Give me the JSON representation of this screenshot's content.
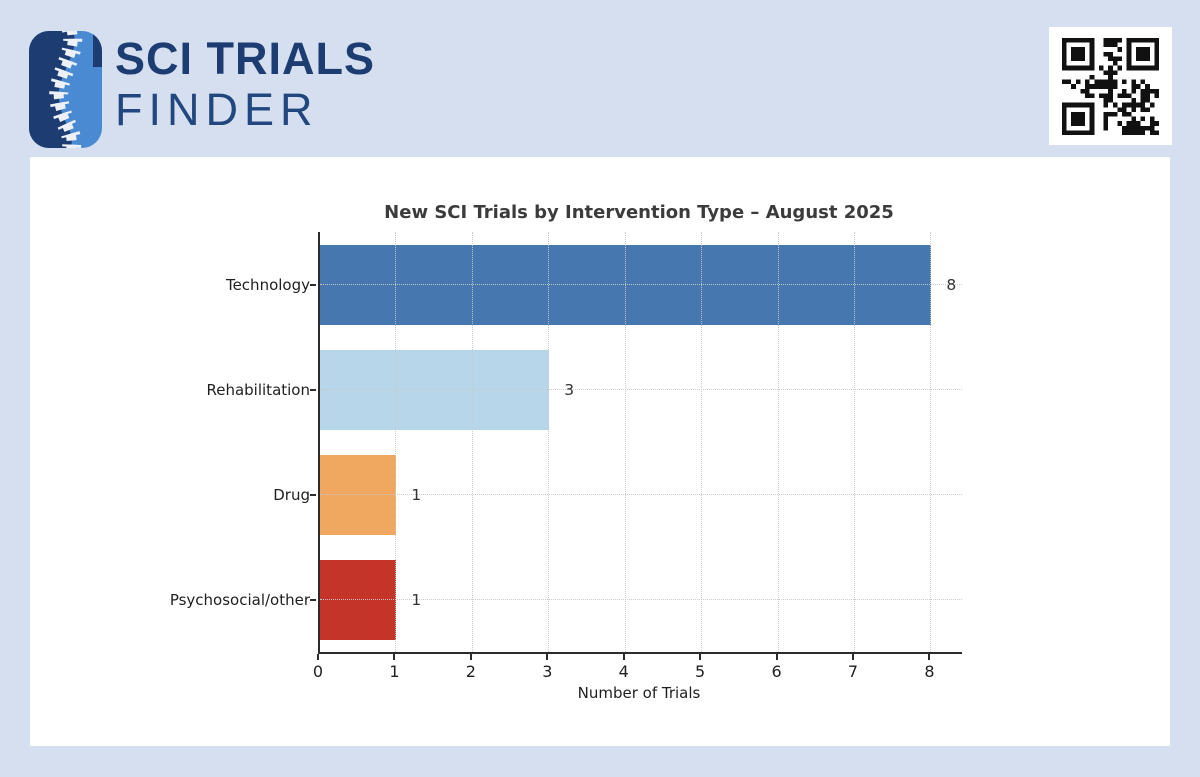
{
  "header": {
    "brand_line1": "SCI TRIALS",
    "brand_line2": "FINDER",
    "logo_icon": "spine-logo-icon",
    "qr_icon": "qr-code"
  },
  "colors": {
    "page_background": "#d5dff0",
    "card_background": "#ffffff",
    "brand_navy": "#1d3d72",
    "brand_blue": "#4a8ad2",
    "spine_white": "#edf1f7"
  },
  "chart_data": {
    "type": "bar",
    "orientation": "horizontal",
    "title": "New SCI Trials by Intervention Type – August 2025",
    "categories": [
      "Technology",
      "Rehabilitation",
      "Drug",
      "Psychosocial/other"
    ],
    "values": [
      8,
      3,
      1,
      1
    ],
    "value_labels": [
      "8",
      "3",
      "1",
      "1"
    ],
    "bar_colors": [
      "#4678af",
      "#b8d6e9",
      "#f0a860",
      "#c43428"
    ],
    "xlabel": "Number of Trials",
    "ylabel": "",
    "xticks": [
      0,
      1,
      2,
      3,
      4,
      5,
      6,
      7,
      8
    ],
    "xlim": [
      0,
      8.4
    ],
    "grid": "dotted-both-axes-on-top",
    "legend": "none"
  }
}
